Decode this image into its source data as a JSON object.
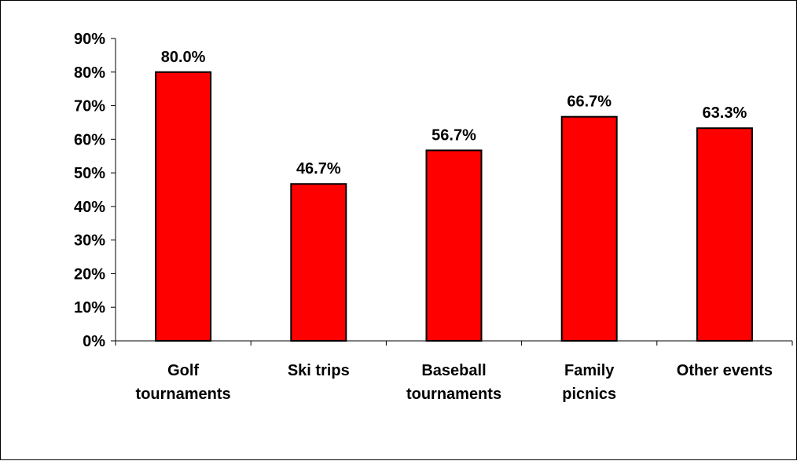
{
  "chart_data": {
    "type": "bar",
    "categories": [
      [
        "Golf",
        "tournaments"
      ],
      [
        "Ski trips"
      ],
      [
        "Baseball",
        "tournaments"
      ],
      [
        "Family",
        "picnics"
      ],
      [
        "Other events"
      ]
    ],
    "values": [
      80.0,
      46.7,
      56.7,
      66.7,
      63.3
    ],
    "data_labels": [
      "80.0%",
      "46.7%",
      "56.7%",
      "66.7%",
      "63.3%"
    ],
    "y_ticks": [
      "0%",
      "10%",
      "20%",
      "30%",
      "40%",
      "50%",
      "60%",
      "70%",
      "80%",
      "90%"
    ],
    "ylim": [
      0,
      90
    ],
    "title": "",
    "xlabel": "",
    "ylabel": "",
    "grid": false,
    "legend": "none",
    "colors": {
      "bar_fill": "#ff0000",
      "bar_stroke": "#000000",
      "axis": "#000000",
      "frame": "#000000",
      "text": "#000000"
    }
  }
}
